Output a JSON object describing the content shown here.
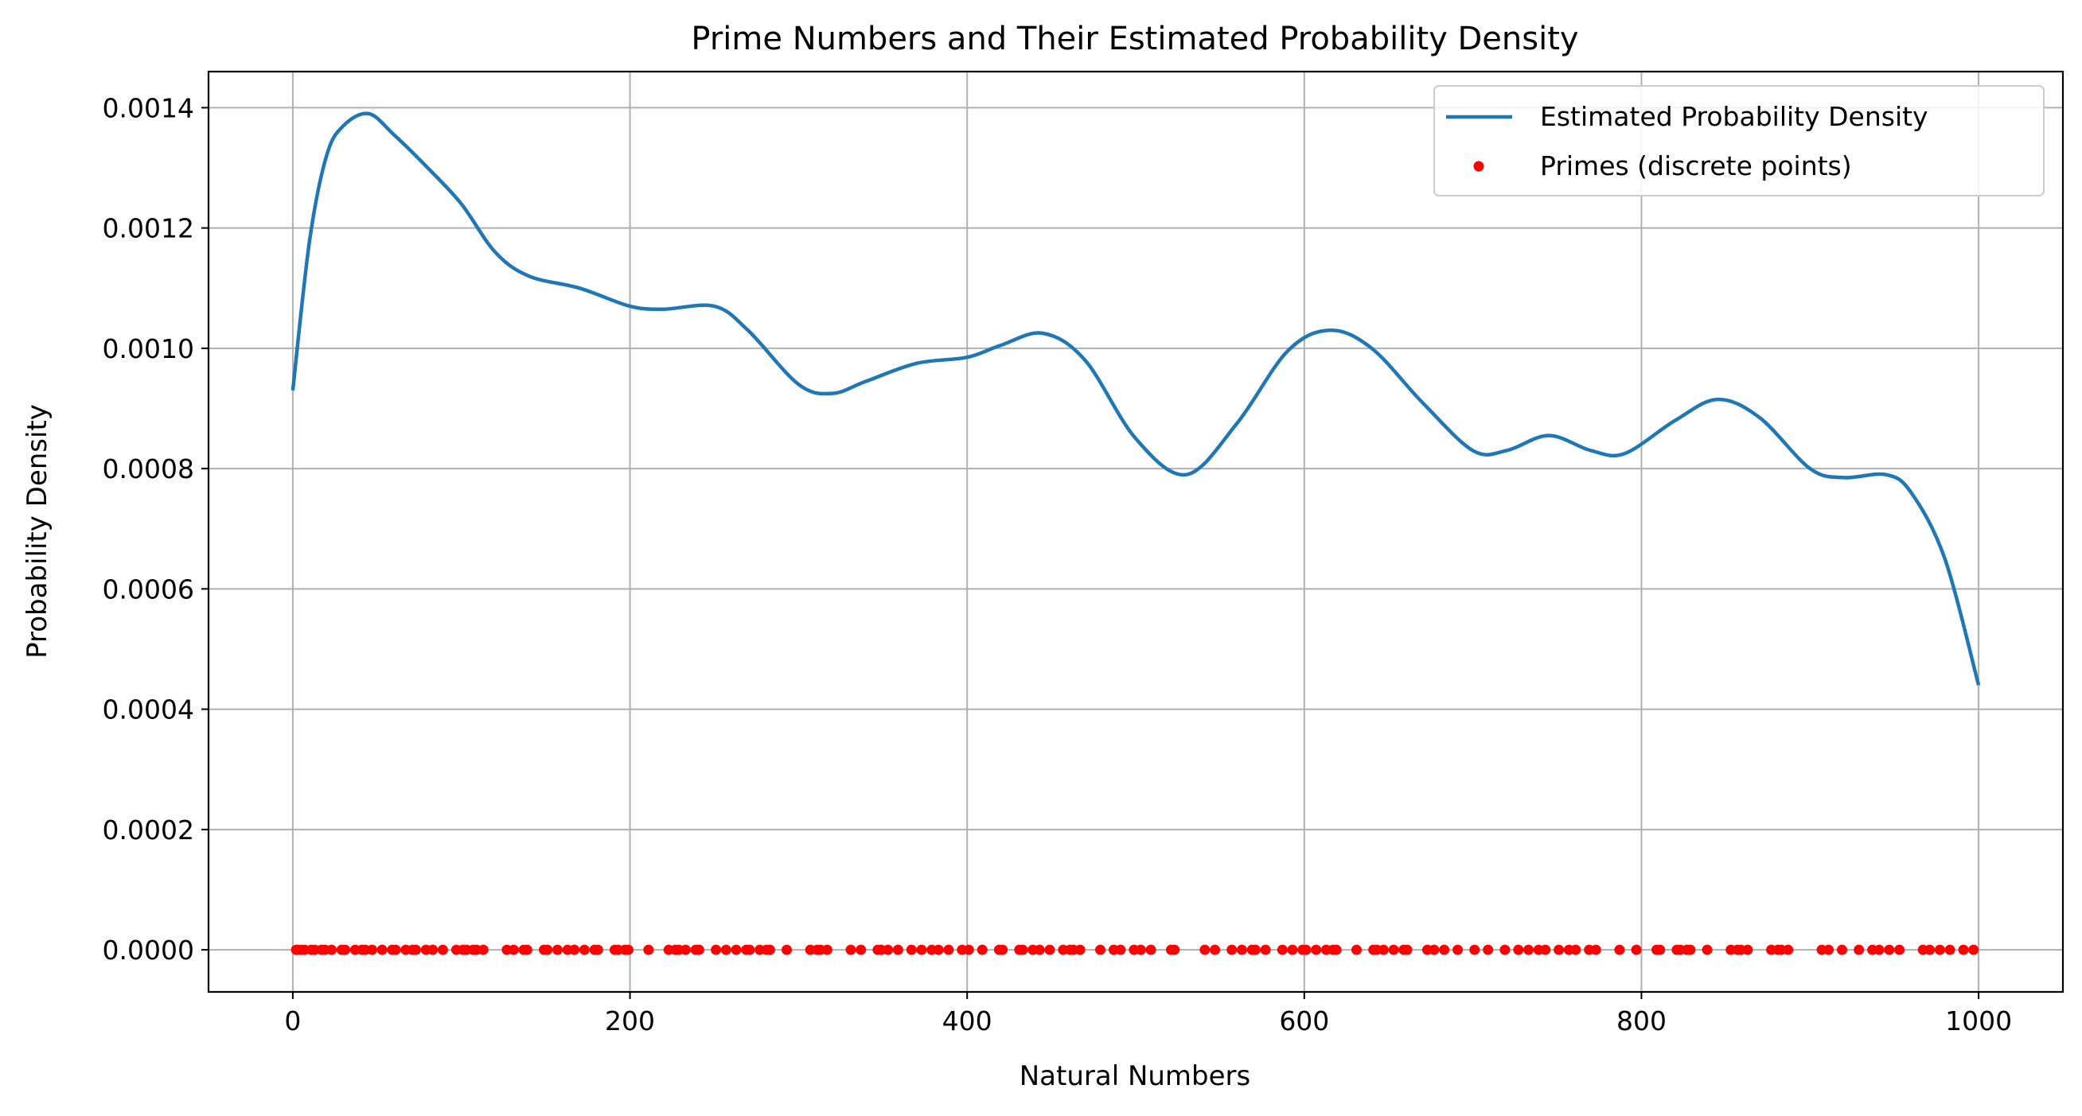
{
  "chart_data": {
    "type": "line",
    "title": "Prime Numbers and Their Estimated Probability Density",
    "xlabel": "Natural Numbers",
    "ylabel": "Probability Density",
    "xlim": [
      -50,
      1050
    ],
    "ylim": [
      -7e-05,
      0.00146
    ],
    "xticks": [
      0,
      200,
      400,
      600,
      800,
      1000
    ],
    "xtick_labels": [
      "0",
      "200",
      "400",
      "600",
      "800",
      "1000"
    ],
    "yticks": [
      0,
      0.0002,
      0.0004,
      0.0006,
      0.0008,
      0.001,
      0.0012,
      0.0014
    ],
    "ytick_labels": [
      "0.0000",
      "0.0002",
      "0.0004",
      "0.0006",
      "0.0008",
      "0.0010",
      "0.0012",
      "0.0014"
    ],
    "grid": true,
    "legend_position": "top-right",
    "colors": {
      "density": "#1f77b4",
      "primes": "#ff0000",
      "grid": "#b0b0b0"
    },
    "series": [
      {
        "name": "Estimated Probability Density",
        "kind": "line",
        "x": [
          0,
          10,
          20,
          30,
          45,
          60,
          80,
          100,
          120,
          140,
          170,
          200,
          220,
          250,
          270,
          300,
          320,
          340,
          370,
          400,
          420,
          445,
          470,
          500,
          530,
          560,
          590,
          615,
          640,
          670,
          700,
          720,
          745,
          770,
          790,
          820,
          845,
          870,
          900,
          920,
          945,
          960,
          980,
          1000
        ],
        "y": [
          0.00093,
          0.00118,
          0.00132,
          0.00137,
          0.00139,
          0.001355,
          0.0013,
          0.00124,
          0.00116,
          0.00112,
          0.0011,
          0.00107,
          0.001065,
          0.00107,
          0.00103,
          0.00094,
          0.000925,
          0.000945,
          0.000975,
          0.000985,
          0.001005,
          0.001025,
          0.00098,
          0.00085,
          0.00079,
          0.000875,
          0.000995,
          0.00103,
          0.001,
          0.00091,
          0.00083,
          0.00083,
          0.000855,
          0.00083,
          0.000825,
          0.00088,
          0.000915,
          0.000885,
          0.0008,
          0.000785,
          0.00079,
          0.00076,
          0.00065,
          0.00044
        ]
      },
      {
        "name": "Primes (discrete points)",
        "kind": "scatter",
        "x": [
          2,
          3,
          5,
          7,
          11,
          13,
          17,
          19,
          23,
          29,
          31,
          37,
          41,
          43,
          47,
          53,
          59,
          61,
          67,
          71,
          73,
          79,
          83,
          89,
          97,
          101,
          103,
          107,
          109,
          113,
          127,
          131,
          137,
          139,
          149,
          151,
          157,
          163,
          167,
          173,
          179,
          181,
          191,
          193,
          197,
          199,
          211,
          223,
          227,
          229,
          233,
          239,
          241,
          251,
          257,
          263,
          269,
          271,
          277,
          281,
          283,
          293,
          307,
          311,
          313,
          317,
          331,
          337,
          347,
          349,
          353,
          359,
          367,
          373,
          379,
          383,
          389,
          397,
          401,
          409,
          419,
          421,
          431,
          433,
          439,
          443,
          449,
          457,
          461,
          463,
          467,
          479,
          487,
          491,
          499,
          503,
          509,
          521,
          523,
          541,
          547,
          557,
          563,
          569,
          571,
          577,
          587,
          593,
          599,
          601,
          607,
          613,
          617,
          619,
          631,
          641,
          643,
          647,
          653,
          659,
          661,
          673,
          677,
          683,
          691,
          701,
          709,
          719,
          727,
          733,
          739,
          743,
          751,
          757,
          761,
          769,
          773,
          787,
          797,
          809,
          811,
          821,
          823,
          827,
          829,
          839,
          853,
          857,
          859,
          863,
          877,
          881,
          883,
          887,
          907,
          911,
          919,
          929,
          937,
          941,
          947,
          953,
          967,
          971,
          977,
          983,
          991,
          997
        ],
        "y_value": 0
      }
    ]
  }
}
